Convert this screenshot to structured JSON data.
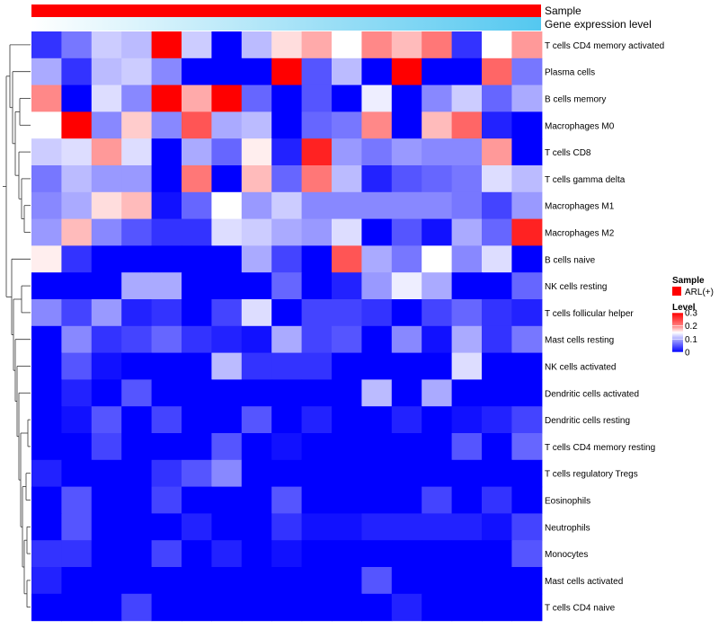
{
  "chart_data": {
    "type": "heatmap",
    "annotation_tracks": [
      {
        "name": "Sample",
        "color": "#ff0000"
      },
      {
        "name": "Gene expression level",
        "gradient": [
          "#ffffff",
          "#54c8f0"
        ]
      }
    ],
    "columns": 17,
    "rows": [
      "T cells CD4 memory activated",
      "Plasma cells",
      "B cells memory",
      "Macrophages M0",
      "T cells CD8",
      "T cells gamma delta",
      "Macrophages M1",
      "Macrophages M2",
      "B cells naive",
      "NK cells resting",
      "T cells follicular helper",
      "Mast cells resting",
      "NK cells activated",
      "Dendritic cells activated",
      "Dendritic cells resting",
      "T cells CD4 memory resting",
      "T cells regulatory  Tregs",
      "Eosinophils",
      "Neutrophils",
      "Monocytes",
      "Mast cells activated",
      "T cells CD4 naive"
    ],
    "values": [
      [
        0.03,
        0.07,
        0.12,
        0.11,
        0.3,
        0.12,
        0.0,
        0.11,
        0.17,
        0.2,
        0.15,
        0.22,
        0.19,
        0.23,
        0.03,
        0.15,
        0.21
      ],
      [
        0.1,
        0.03,
        0.11,
        0.12,
        0.08,
        0.0,
        0.0,
        0.0,
        0.3,
        0.05,
        0.11,
        0.0,
        0.3,
        0.0,
        0.0,
        0.24,
        0.07
      ],
      [
        0.22,
        0.0,
        0.13,
        0.08,
        0.3,
        0.2,
        0.3,
        0.06,
        0.0,
        0.05,
        0.0,
        0.14,
        0.0,
        0.08,
        0.12,
        0.06,
        0.1
      ],
      [
        0.15,
        0.3,
        0.08,
        0.18,
        0.08,
        0.25,
        0.1,
        0.11,
        0.0,
        0.06,
        0.07,
        0.22,
        0.0,
        0.19,
        0.24,
        0.02,
        0.0
      ],
      [
        0.12,
        0.13,
        0.21,
        0.13,
        0.0,
        0.1,
        0.06,
        0.16,
        0.02,
        0.28,
        0.09,
        0.07,
        0.09,
        0.08,
        0.08,
        0.21,
        0.0
      ],
      [
        0.07,
        0.11,
        0.09,
        0.09,
        0.0,
        0.23,
        0.0,
        0.19,
        0.06,
        0.23,
        0.11,
        0.02,
        0.05,
        0.06,
        0.07,
        0.13,
        0.11
      ],
      [
        0.08,
        0.1,
        0.17,
        0.19,
        0.01,
        0.06,
        0.15,
        0.09,
        0.12,
        0.08,
        0.08,
        0.08,
        0.08,
        0.08,
        0.07,
        0.04,
        0.09
      ],
      [
        0.09,
        0.19,
        0.08,
        0.05,
        0.03,
        0.03,
        0.13,
        0.12,
        0.1,
        0.09,
        0.13,
        0.0,
        0.05,
        0.01,
        0.1,
        0.06,
        0.28
      ],
      [
        0.16,
        0.03,
        0.0,
        0.0,
        0.0,
        0.0,
        0.0,
        0.1,
        0.04,
        0.0,
        0.25,
        0.1,
        0.07,
        0.15,
        0.08,
        0.13,
        0.0
      ],
      [
        0.0,
        0.0,
        0.0,
        0.1,
        0.1,
        0.0,
        0.0,
        0.0,
        0.06,
        0.0,
        0.02,
        0.09,
        0.14,
        0.1,
        0.0,
        0.0,
        0.06
      ],
      [
        0.08,
        0.04,
        0.09,
        0.02,
        0.03,
        0.0,
        0.04,
        0.13,
        0.0,
        0.04,
        0.04,
        0.03,
        0.0,
        0.04,
        0.06,
        0.03,
        0.02
      ],
      [
        0.0,
        0.08,
        0.03,
        0.04,
        0.06,
        0.03,
        0.02,
        0.01,
        0.1,
        0.04,
        0.05,
        0.0,
        0.08,
        0.01,
        0.1,
        0.03,
        0.07
      ],
      [
        0.0,
        0.05,
        0.01,
        0.0,
        0.0,
        0.0,
        0.11,
        0.03,
        0.03,
        0.03,
        0.0,
        0.0,
        0.0,
        0.0,
        0.13,
        0.0,
        0.0
      ],
      [
        0.0,
        0.02,
        0.0,
        0.05,
        0.0,
        0.0,
        0.0,
        0.0,
        0.0,
        0.0,
        0.0,
        0.11,
        0.0,
        0.1,
        0.0,
        0.0,
        0.0
      ],
      [
        0.0,
        0.01,
        0.05,
        0.0,
        0.04,
        0.0,
        0.0,
        0.05,
        0.0,
        0.02,
        0.0,
        0.0,
        0.02,
        0.0,
        0.01,
        0.02,
        0.04
      ],
      [
        0.0,
        0.0,
        0.04,
        0.0,
        0.0,
        0.0,
        0.05,
        0.0,
        0.01,
        0.0,
        0.0,
        0.0,
        0.0,
        0.0,
        0.05,
        0.0,
        0.06
      ],
      [
        0.02,
        0.0,
        0.0,
        0.0,
        0.03,
        0.05,
        0.08,
        0.0,
        0.0,
        0.0,
        0.0,
        0.0,
        0.0,
        0.0,
        0.0,
        0.0,
        0.0
      ],
      [
        0.0,
        0.05,
        0.0,
        0.0,
        0.04,
        0.0,
        0.0,
        0.0,
        0.05,
        0.0,
        0.0,
        0.0,
        0.0,
        0.04,
        0.0,
        0.03,
        0.0
      ],
      [
        0.0,
        0.05,
        0.0,
        0.0,
        0.0,
        0.02,
        0.0,
        0.0,
        0.03,
        0.01,
        0.01,
        0.02,
        0.02,
        0.02,
        0.02,
        0.01,
        0.04
      ],
      [
        0.03,
        0.03,
        0.0,
        0.0,
        0.04,
        0.0,
        0.02,
        0.0,
        0.01,
        0.0,
        0.0,
        0.0,
        0.0,
        0.0,
        0.0,
        0.0,
        0.05
      ],
      [
        0.02,
        0.0,
        0.0,
        0.0,
        0.0,
        0.0,
        0.0,
        0.0,
        0.0,
        0.0,
        0.0,
        0.05,
        0.0,
        0.0,
        0.0,
        0.0,
        0.0
      ],
      [
        0.0,
        0.0,
        0.0,
        0.04,
        0.0,
        0.0,
        0.0,
        0.0,
        0.0,
        0.0,
        0.0,
        0.0,
        0.02,
        0.0,
        0.0,
        0.0,
        0.0
      ]
    ],
    "color_scale": {
      "low": "#0000ff",
      "mid": "#ffffff",
      "high": "#ff0000",
      "min": 0,
      "max": 0.3
    },
    "legend": {
      "sample_title": "Sample",
      "sample_item": "ARL(+)",
      "level_title": "Level",
      "level_ticks": [
        "0.3",
        "0.2",
        "0.1",
        "0"
      ],
      "level_tick_values": [
        0.3,
        0.2,
        0.1,
        0
      ],
      "placement": "right"
    },
    "row_dendrogram": "left"
  }
}
